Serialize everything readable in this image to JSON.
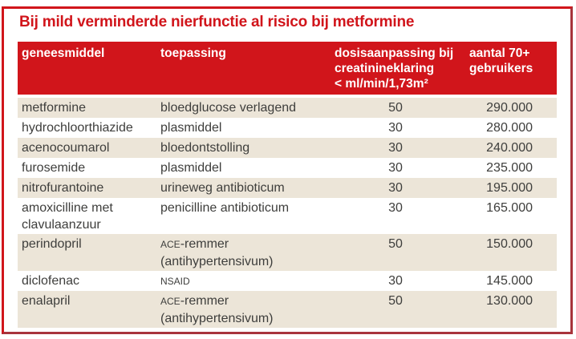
{
  "title": "Bij mild verminderde nierfunctie al risico bij metformine",
  "colors": {
    "accent_red": "#d1151b",
    "border_shadow_red": "#a8343c",
    "row_beige": "#ece5d8",
    "header_text": "#ffffff",
    "body_text": "#3e3e3c"
  },
  "table": {
    "headers": [
      {
        "lines": [
          "geneesmiddel"
        ]
      },
      {
        "lines": [
          "toepassing"
        ]
      },
      {
        "lines": [
          "dosisaanpassing bij",
          "creatinineklaring",
          "< ml/min/1,73m²"
        ]
      },
      {
        "lines": [
          "aantal 70+",
          "gebruikers"
        ]
      }
    ],
    "rows": [
      {
        "geneesmiddel": "metformine",
        "toepassing_sc": "",
        "toepassing": "bloedglucose verlagend",
        "dosisaanpassing": "50",
        "aantal": "290.000"
      },
      {
        "geneesmiddel": "hydrochloorthiazide",
        "toepassing_sc": "",
        "toepassing": "plasmiddel",
        "dosisaanpassing": "30",
        "aantal": "280.000"
      },
      {
        "geneesmiddel": "acenocoumarol",
        "toepassing_sc": "",
        "toepassing": "bloedontstolling",
        "dosisaanpassing": "30",
        "aantal": "240.000"
      },
      {
        "geneesmiddel": "furosemide",
        "toepassing_sc": "",
        "toepassing": "plasmiddel",
        "dosisaanpassing": "30",
        "aantal": "235.000"
      },
      {
        "geneesmiddel": "nitrofurantoine",
        "toepassing_sc": "",
        "toepassing": "urineweg antibioticum",
        "dosisaanpassing": "30",
        "aantal": "195.000"
      },
      {
        "geneesmiddel": "amoxicilline met clavulaanzuur",
        "toepassing_sc": "",
        "toepassing": "penicilline antibioticum",
        "dosisaanpassing": "30",
        "aantal": "165.000"
      },
      {
        "geneesmiddel": "perindopril",
        "toepassing_sc": "ACE",
        "toepassing": "-remmer (antihypertensivum)",
        "dosisaanpassing": "50",
        "aantal": "150.000"
      },
      {
        "geneesmiddel": "diclofenac",
        "toepassing_sc": "NSAID",
        "toepassing": "",
        "dosisaanpassing": "30",
        "aantal": "145.000"
      },
      {
        "geneesmiddel": "enalapril",
        "toepassing_sc": "ACE",
        "toepassing": "-remmer (antihypertensivum)",
        "dosisaanpassing": "50",
        "aantal": "130.000"
      }
    ]
  }
}
